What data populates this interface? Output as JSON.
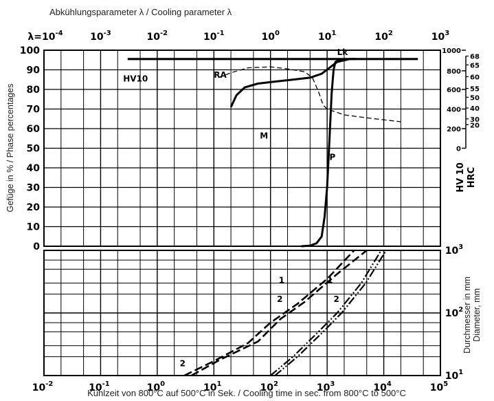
{
  "header": {
    "top_title": "Abkühlungsparameter λ / Cooling parameter λ",
    "bottom_title": "Kühlzeit von 800°C auf 500°C in Sek. / Cooling time in sec. from 800°C to 500°C",
    "left_title": "Gefüge in % / Phase percentages",
    "right_title_hv": "HV 10",
    "right_title_hrc": "HRC",
    "right_title_diameter_de": "Durchmesser in mm",
    "right_title_diameter_en": "Diameter, mm"
  },
  "chart_data": [
    {
      "type": "line",
      "panel": "phase-percentages",
      "x_axis_top": {
        "title": "Abkühlungsparameter λ / Cooling parameter λ",
        "scale": "log",
        "tick_labels": [
          "λ=10⁻⁴",
          "10⁻³",
          "10⁻²",
          "10⁻¹",
          "10⁰",
          "10¹",
          "10²",
          "10³"
        ]
      },
      "x_axis_bottom": {
        "title": "Kühlzeit von 800°C auf 500°C in Sek. / Cooling time in sec. from 800°C to 500°C",
        "scale": "log",
        "range": [
          0.01,
          100000
        ],
        "tick_labels": [
          "10⁻²",
          "10⁻¹",
          "10⁰",
          "10¹",
          "10²",
          "10³",
          "10⁴",
          "10⁵"
        ]
      },
      "y_axis_left": {
        "title": "Gefüge in % / Phase percentages",
        "range": [
          0,
          100
        ],
        "tick_labels": [
          "0",
          "10",
          "20",
          "30",
          "40",
          "50",
          "60",
          "70",
          "80",
          "90",
          "100"
        ]
      },
      "y_axis_right_hv": {
        "title": "HV 10",
        "tick_labels": [
          "1000",
          "800",
          "600",
          "400",
          "200",
          "0"
        ],
        "tick_values_pct": [
          100,
          89.5,
          80,
          70,
          60,
          50
        ]
      },
      "y_axis_right_hrc": {
        "title": "HRC",
        "tick_labels": [
          "68",
          "65",
          "60",
          "55",
          "50",
          "40",
          "30",
          "20"
        ],
        "tick_values_pct": [
          97,
          92.5,
          86.5,
          80.5,
          76,
          70.5,
          65,
          62
        ]
      },
      "region_labels": [
        "Lk",
        "RA",
        "M",
        "P",
        "HV10"
      ],
      "series": [
        {
          "name": "Lk",
          "style": "solid-heavy",
          "points": [
            [
              0.3,
              95.5
            ],
            [
              2.0,
              95.5
            ],
            [
              10,
              95.5
            ],
            [
              100,
              95.5
            ],
            [
              1000,
              95.5
            ],
            [
              10000,
              95.5
            ],
            [
              40000,
              95.5
            ]
          ]
        },
        {
          "name": "RA",
          "style": "solid",
          "points": [
            [
              20,
              71
            ],
            [
              25,
              77
            ],
            [
              35,
              81
            ],
            [
              60,
              83
            ],
            [
              120,
              84
            ],
            [
              250,
              85
            ],
            [
              500,
              86
            ],
            [
              800,
              88
            ],
            [
              1100,
              91
            ],
            [
              1500,
              94
            ],
            [
              2500,
              95.5
            ],
            [
              3200,
              95.5
            ]
          ]
        },
        {
          "name": "P",
          "style": "solid",
          "points": [
            [
              350,
              0
            ],
            [
              500,
              0.3
            ],
            [
              650,
              1.5
            ],
            [
              800,
              5
            ],
            [
              900,
              15
            ],
            [
              1000,
              30
            ],
            [
              1100,
              55
            ],
            [
              1200,
              78
            ],
            [
              1300,
              90
            ],
            [
              1400,
              94
            ],
            [
              1700,
              95.5
            ]
          ]
        },
        {
          "name": "HV10",
          "style": "dashed-thin",
          "points": [
            [
              12,
              86
            ],
            [
              20,
              88.5
            ],
            [
              40,
              91
            ],
            [
              100,
              91.5
            ],
            [
              200,
              90.5
            ],
            [
              400,
              89
            ],
            [
              550,
              86
            ],
            [
              700,
              79
            ],
            [
              850,
              72
            ],
            [
              1000,
              70
            ],
            [
              2000,
              67
            ],
            [
              5000,
              65.5
            ],
            [
              20000,
              63.5
            ]
          ]
        }
      ]
    },
    {
      "type": "line",
      "panel": "diameter",
      "x_axis": {
        "scale": "log",
        "range": [
          0.01,
          100000
        ]
      },
      "y_axis_right": {
        "title": "Durchmesser in mm / Diameter, mm",
        "scale": "log",
        "range": [
          10,
          1000
        ],
        "tick_labels": [
          "10¹",
          "10²",
          "10³"
        ]
      },
      "series": [
        {
          "name": "1",
          "style": "dashed",
          "points": [
            [
              3,
              10
            ],
            [
              10,
              17
            ],
            [
              40,
              33
            ],
            [
              100,
              70
            ],
            [
              300,
              140
            ],
            [
              1000,
              350
            ],
            [
              3000,
              1000
            ]
          ]
        },
        {
          "name": "2",
          "style": "dashed",
          "points": [
            [
              4,
              10
            ],
            [
              13,
              18
            ],
            [
              60,
              35
            ],
            [
              150,
              80
            ],
            [
              400,
              150
            ],
            [
              1500,
              420
            ],
            [
              5000,
              1000
            ]
          ]
        },
        {
          "name": "1",
          "style": "dash-dot",
          "points": [
            [
              100,
              10
            ],
            [
              250,
              20
            ],
            [
              700,
              50
            ],
            [
              1500,
              100
            ],
            [
              4000,
              300
            ],
            [
              9000,
              1000
            ]
          ]
        },
        {
          "name": "2",
          "style": "dash-dot",
          "points": [
            [
              120,
              10
            ],
            [
              300,
              20
            ],
            [
              850,
              50
            ],
            [
              1800,
              100
            ],
            [
              4800,
              300
            ],
            [
              11000,
              1000
            ]
          ]
        }
      ],
      "curve_labels": [
        "1",
        "2",
        "1",
        "2",
        "2"
      ]
    }
  ]
}
